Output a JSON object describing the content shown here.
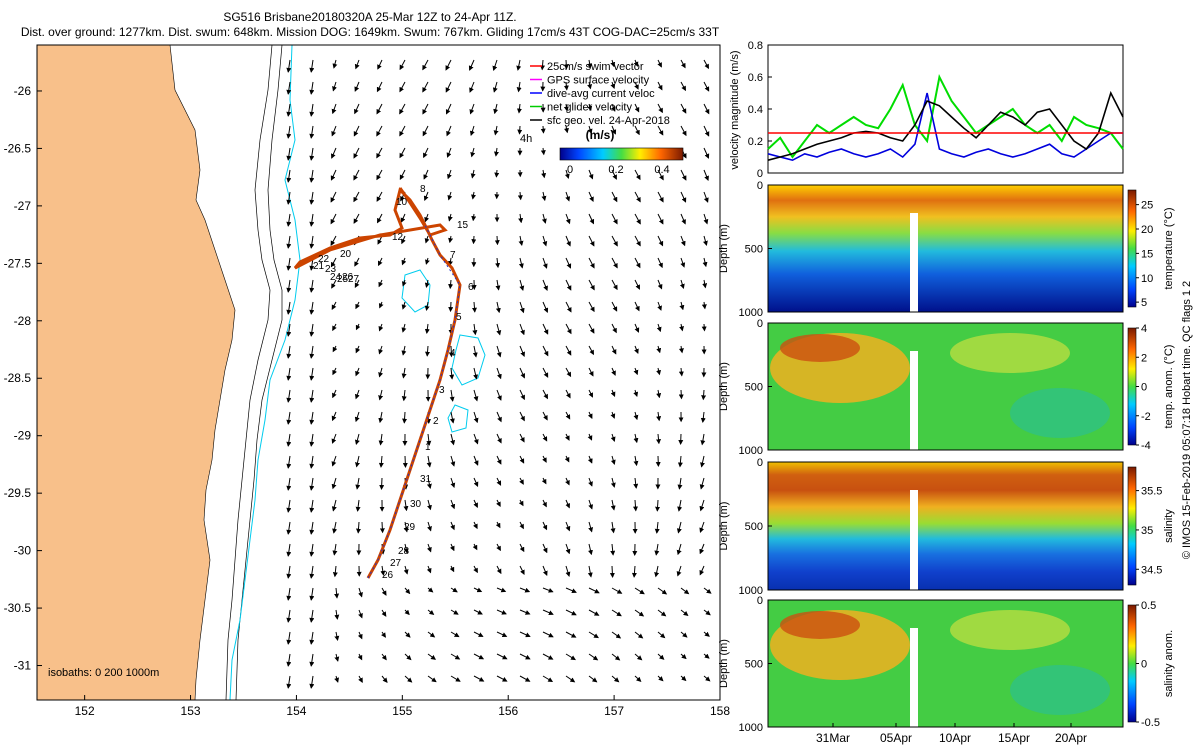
{
  "header": {
    "line1": "SG516 Brisbane20180320A 25-Mar 12Z to 24-Apr 11Z.",
    "line2": "Dist. over ground: 1277km. Dist. swum: 648km. Mission DOG: 1649km. Swum: 767km. Gliding 17cm/s 43T COG-DAC=25cm/s 33T"
  },
  "map": {
    "lon_ticks": [
      "152",
      "153",
      "154",
      "155",
      "156",
      "157",
      "158"
    ],
    "lat_ticks": [
      "-26",
      "-26.5",
      "-27",
      "-27.5",
      "-28",
      "-28.5",
      "-29",
      "-29.5",
      "-30",
      "-30.5",
      "-31"
    ],
    "lon_range": [
      151.55,
      158.0
    ],
    "lat_range": [
      -31.3,
      -25.6
    ],
    "legend": [
      {
        "label": "25cm/s swim vector",
        "color": "#ff0000"
      },
      {
        "label": "GPS surface velocity",
        "color": "#ff00ff"
      },
      {
        "label": "dive-avg current veloc",
        "color": "#0000ff"
      },
      {
        "label": "net glider velocity",
        "color": "#00cc00"
      },
      {
        "label": "sfc geo. vel. 24-Apr-2018",
        "color": "#000000"
      }
    ],
    "scale_label": "4h",
    "colorbar_title": "(m/s)",
    "colorbar_ticks": [
      "0",
      "0.2",
      "0.4"
    ],
    "isobaths_label": "isobaths: 0   200   1000m",
    "day_labels": [
      "26",
      "27",
      "28",
      "29",
      "30",
      "31",
      "1",
      "2",
      "3",
      "4",
      "5",
      "6",
      "7",
      "8",
      "10",
      "12",
      "15",
      "20",
      "21",
      "22",
      "23",
      "24",
      "25",
      "26",
      "27"
    ]
  },
  "chart_data": [
    {
      "type": "line",
      "title": "",
      "ylabel": "velocity magnitude (m/s)",
      "ylim": [
        0,
        0.8
      ],
      "yticks": [
        "0",
        "0.2",
        "0.4",
        "0.6",
        "0.8"
      ],
      "series": [
        {
          "name": "net glider velocity",
          "color": "#00dd00",
          "values": [
            0.15,
            0.22,
            0.1,
            0.2,
            0.3,
            0.25,
            0.3,
            0.35,
            0.3,
            0.28,
            0.4,
            0.55,
            0.3,
            0.2,
            0.6,
            0.45,
            0.35,
            0.25,
            0.3,
            0.35,
            0.4,
            0.3,
            0.25,
            0.3,
            0.2,
            0.35,
            0.3,
            0.28,
            0.25,
            0.15
          ]
        },
        {
          "name": "dive-avg current veloc",
          "color": "#0000dd",
          "values": [
            0.12,
            0.1,
            0.08,
            0.12,
            0.1,
            0.13,
            0.15,
            0.12,
            0.1,
            0.12,
            0.15,
            0.1,
            0.18,
            0.5,
            0.15,
            0.12,
            0.1,
            0.13,
            0.15,
            0.12,
            0.1,
            0.12,
            0.15,
            0.18,
            0.12,
            0.1,
            0.15,
            0.2,
            0.25,
            0.25
          ]
        },
        {
          "name": "sfc geo. vel.",
          "color": "#000000",
          "values": [
            0.08,
            0.1,
            0.12,
            0.15,
            0.18,
            0.2,
            0.22,
            0.25,
            0.26,
            0.25,
            0.22,
            0.2,
            0.3,
            0.45,
            0.42,
            0.35,
            0.28,
            0.22,
            0.3,
            0.38,
            0.35,
            0.3,
            0.38,
            0.4,
            0.3,
            0.2,
            0.15,
            0.25,
            0.5,
            0.35
          ]
        },
        {
          "name": "25cm/s reference",
          "color": "#ff0000",
          "values": [
            0.25,
            0.25
          ]
        }
      ]
    },
    {
      "type": "heatmap",
      "ylabel": "Depth (m)",
      "yticks": [
        "0",
        "500",
        "1000"
      ],
      "colorbar_label": "temperature (°C)",
      "colorbar_ticks": [
        "5",
        "10",
        "15",
        "20",
        "25"
      ],
      "crange": [
        4,
        28
      ]
    },
    {
      "type": "heatmap",
      "ylabel": "Depth (m)",
      "yticks": [
        "0",
        "500",
        "1000"
      ],
      "colorbar_label": "temp. anom. (°C)",
      "colorbar_ticks": [
        "-4",
        "-2",
        "0",
        "2",
        "4"
      ],
      "crange": [
        -4,
        4
      ]
    },
    {
      "type": "heatmap",
      "ylabel": "Depth (m)",
      "yticks": [
        "0",
        "500",
        "1000"
      ],
      "colorbar_label": "salinity",
      "colorbar_ticks": [
        "34.5",
        "35",
        "35.5"
      ],
      "crange": [
        34.3,
        35.8
      ]
    },
    {
      "type": "heatmap",
      "ylabel": "Depth (m)",
      "yticks": [
        "0",
        "500",
        "1000"
      ],
      "colorbar_label": "salinity anom.",
      "colorbar_ticks": [
        "-0.5",
        "0",
        "0.5"
      ],
      "crange": [
        -0.5,
        0.5
      ],
      "xticks": [
        "31Mar",
        "05Apr",
        "10Apr",
        "15Apr",
        "20Apr"
      ]
    }
  ],
  "footer_note": "© IMOS 15-Feb-2019 05:07:18 Hobart time. QC flags 1  2"
}
